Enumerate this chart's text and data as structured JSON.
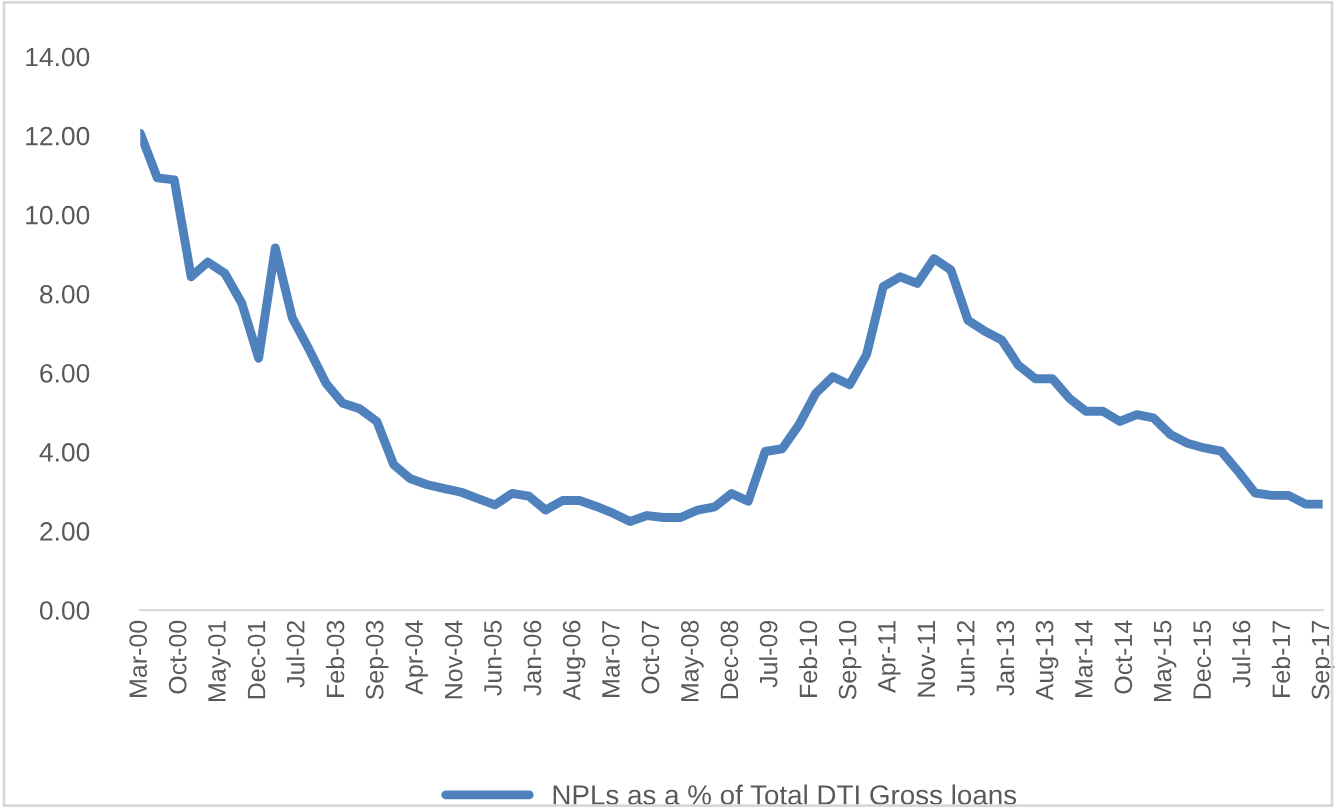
{
  "chart_data": {
    "type": "line",
    "legend": "bottom",
    "grid": false,
    "x": [
      "2000-03",
      "2000-06",
      "2000-09",
      "2000-12",
      "2001-03",
      "2001-06",
      "2001-09",
      "2001-12",
      "2002-03",
      "2002-06",
      "2002-09",
      "2002-12",
      "2003-03",
      "2003-06",
      "2003-09",
      "2003-12",
      "2004-03",
      "2004-06",
      "2004-09",
      "2004-12",
      "2005-03",
      "2005-06",
      "2005-09",
      "2005-12",
      "2006-03",
      "2006-06",
      "2006-09",
      "2006-12",
      "2007-03",
      "2007-06",
      "2007-09",
      "2007-12",
      "2008-03",
      "2008-06",
      "2008-09",
      "2008-12",
      "2009-03",
      "2009-06",
      "2009-09",
      "2009-12",
      "2010-03",
      "2010-06",
      "2010-09",
      "2010-12",
      "2011-03",
      "2011-06",
      "2011-09",
      "2011-12",
      "2012-03",
      "2012-06",
      "2012-09",
      "2012-12",
      "2013-03",
      "2013-06",
      "2013-09",
      "2013-12",
      "2014-03",
      "2014-06",
      "2014-09",
      "2014-12",
      "2015-03",
      "2015-06",
      "2015-09",
      "2015-12",
      "2016-03",
      "2016-06",
      "2016-09",
      "2016-12",
      "2017-03",
      "2017-06",
      "2017-09"
    ],
    "series": [
      {
        "name": "NPLs as a % of Total DTI Gross loans",
        "color": "#4f81bd",
        "values": [
          12.06,
          10.93,
          10.88,
          8.43,
          8.8,
          8.52,
          7.76,
          6.37,
          9.16,
          7.39,
          6.58,
          5.73,
          5.23,
          5.09,
          4.77,
          3.68,
          3.32,
          3.17,
          3.07,
          2.98,
          2.82,
          2.66,
          2.95,
          2.88,
          2.53,
          2.77,
          2.77,
          2.62,
          2.45,
          2.24,
          2.39,
          2.34,
          2.34,
          2.53,
          2.61,
          2.95,
          2.75,
          4.01,
          4.08,
          4.69,
          5.48,
          5.9,
          5.7,
          6.46,
          8.18,
          8.43,
          8.26,
          8.89,
          8.6,
          7.33,
          7.05,
          6.83,
          6.19,
          5.85,
          5.85,
          5.36,
          5.03,
          5.03,
          4.77,
          4.94,
          4.86,
          4.44,
          4.22,
          4.1,
          4.02,
          3.51,
          2.96,
          2.9,
          2.9,
          2.68,
          2.68
        ]
      }
    ],
    "xlim": [
      "2000-03",
      "2017-09"
    ],
    "xticks": [
      {
        "value": "2000-03",
        "label": "Mar-00"
      },
      {
        "value": "2000-10",
        "label": "Oct-00"
      },
      {
        "value": "2001-05",
        "label": "May-01"
      },
      {
        "value": "2001-12",
        "label": "Dec-01"
      },
      {
        "value": "2002-07",
        "label": "Jul-02"
      },
      {
        "value": "2003-02",
        "label": "Feb-03"
      },
      {
        "value": "2003-09",
        "label": "Sep-03"
      },
      {
        "value": "2004-04",
        "label": "Apr-04"
      },
      {
        "value": "2004-11",
        "label": "Nov-04"
      },
      {
        "value": "2005-06",
        "label": "Jun-05"
      },
      {
        "value": "2006-01",
        "label": "Jan-06"
      },
      {
        "value": "2006-08",
        "label": "Aug-06"
      },
      {
        "value": "2007-03",
        "label": "Mar-07"
      },
      {
        "value": "2007-10",
        "label": "Oct-07"
      },
      {
        "value": "2008-05",
        "label": "May-08"
      },
      {
        "value": "2008-12",
        "label": "Dec-08"
      },
      {
        "value": "2009-07",
        "label": "Jul-09"
      },
      {
        "value": "2010-02",
        "label": "Feb-10"
      },
      {
        "value": "2010-09",
        "label": "Sep-10"
      },
      {
        "value": "2011-04",
        "label": "Apr-11"
      },
      {
        "value": "2011-11",
        "label": "Nov-11"
      },
      {
        "value": "2012-06",
        "label": "Jun-12"
      },
      {
        "value": "2013-01",
        "label": "Jan-13"
      },
      {
        "value": "2013-08",
        "label": "Aug-13"
      },
      {
        "value": "2014-03",
        "label": "Mar-14"
      },
      {
        "value": "2014-10",
        "label": "Oct-14"
      },
      {
        "value": "2015-05",
        "label": "May-15"
      },
      {
        "value": "2015-12",
        "label": "Dec-15"
      },
      {
        "value": "2016-07",
        "label": "Jul-16"
      },
      {
        "value": "2017-02",
        "label": "Feb-17"
      },
      {
        "value": "2017-09",
        "label": "Sep-17"
      }
    ],
    "ylim": [
      0,
      14
    ],
    "yticks": [
      {
        "value": 0,
        "label": "0.00"
      },
      {
        "value": 2,
        "label": "2.00"
      },
      {
        "value": 4,
        "label": "4.00"
      },
      {
        "value": 6,
        "label": "6.00"
      },
      {
        "value": 8,
        "label": "8.00"
      },
      {
        "value": 10,
        "label": "10.00"
      },
      {
        "value": 12,
        "label": "12.00"
      },
      {
        "value": 14,
        "label": "14.00"
      }
    ]
  }
}
